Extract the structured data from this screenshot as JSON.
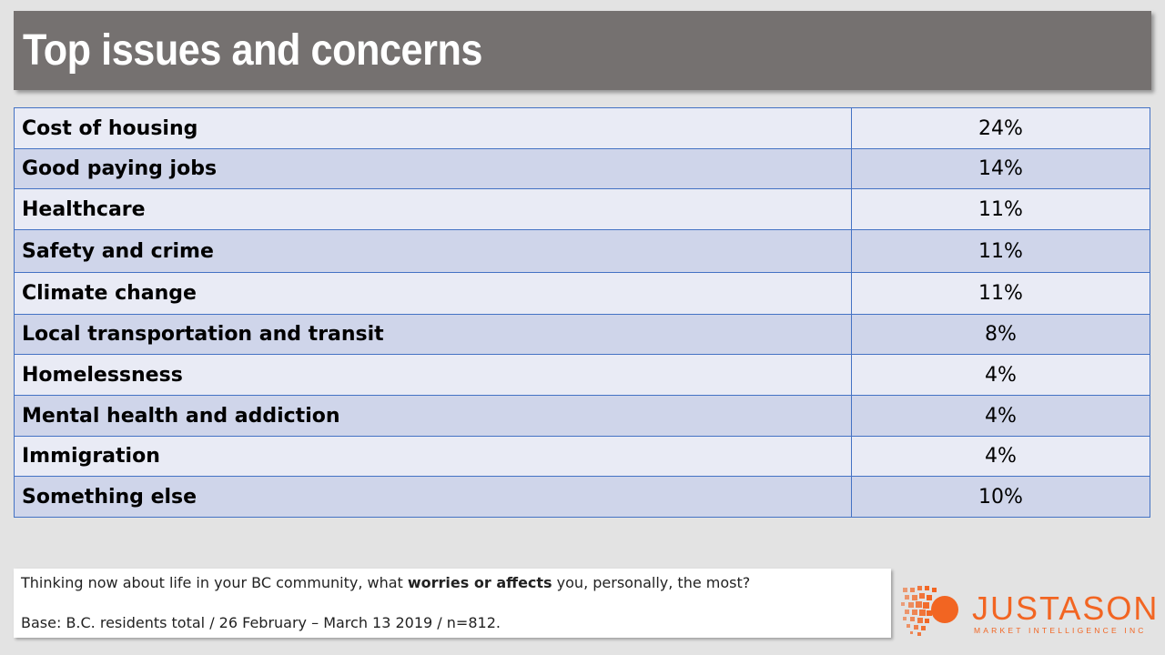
{
  "title": "Top issues and concerns",
  "chart_data": {
    "type": "table",
    "rows": [
      {
        "label": "Cost of housing",
        "value": "24%"
      },
      {
        "label": "Good paying jobs",
        "value": "14%"
      },
      {
        "label": "Healthcare",
        "value": "11%"
      },
      {
        "label": "Safety and crime",
        "value": "11%"
      },
      {
        "label": "Climate change",
        "value": "11%"
      },
      {
        "label": "Local transportation and transit",
        "value": "8%"
      },
      {
        "label": "Homelessness",
        "value": "4%"
      },
      {
        "label": "Mental health and addiction",
        "value": "4%"
      },
      {
        "label": "Immigration",
        "value": "4%"
      },
      {
        "label": "Something else",
        "value": "10%"
      }
    ]
  },
  "note": {
    "question_pre": "Thinking now about life in your BC community, what ",
    "question_bold": "worries or affects",
    "question_post": " you, personally, the most?",
    "base": "Base: B.C. residents total / 26 February – March 13 2019 / n=812."
  },
  "logo": {
    "name": "JUSTASON",
    "tagline": "MARKET INTELLIGENCE INC"
  },
  "colors": {
    "title_bar": "#757170",
    "row_light": "#e9ebf5",
    "row_dark": "#cfd5ea",
    "border": "#4472c4",
    "brand": "#f26522"
  }
}
